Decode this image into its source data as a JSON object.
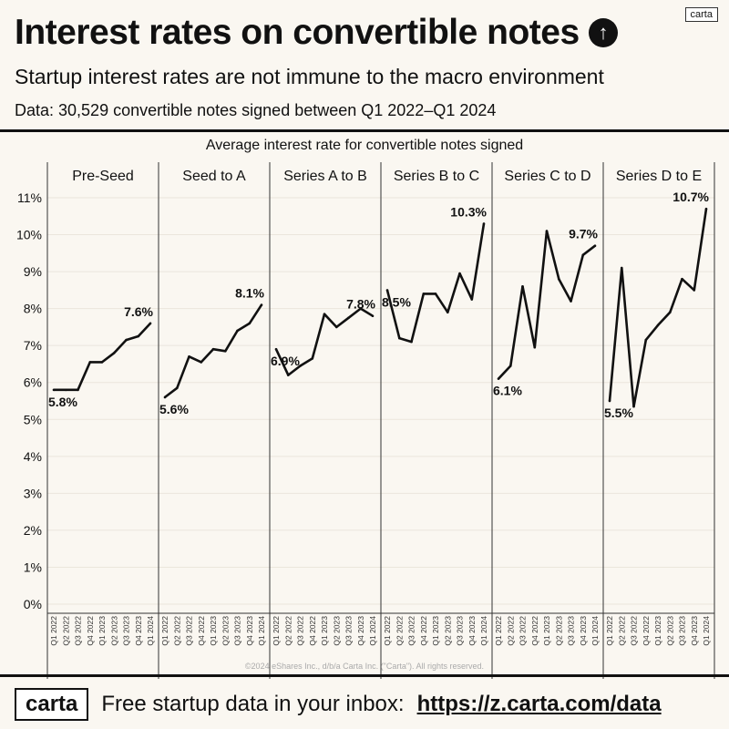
{
  "header": {
    "title": "Interest rates on convertible notes",
    "title_icon": "arrow-up-circle-icon",
    "subtitle": "Startup interest rates are not immune to the macro environment",
    "data_note": "Data: 30,529 convertible notes signed between Q1 2022–Q1 2024",
    "logo_small": "carta"
  },
  "chart_data": {
    "type": "line",
    "title": "Average interest rate for convertible notes signed",
    "x": [
      "Q1 2022",
      "Q2 2022",
      "Q3 2022",
      "Q4 2022",
      "Q1 2023",
      "Q2 2023",
      "Q3 2023",
      "Q4 2023",
      "Q1 2024"
    ],
    "yticks": [
      "0%",
      "1%",
      "2%",
      "3%",
      "4%",
      "5%",
      "6%",
      "7%",
      "8%",
      "9%",
      "10%",
      "11%"
    ],
    "ylim": [
      0,
      11
    ],
    "grid": true,
    "line_color": "#111111",
    "panels": [
      {
        "name": "Pre-Seed",
        "values": [
          5.8,
          5.8,
          5.8,
          6.55,
          6.55,
          6.8,
          7.15,
          7.25,
          7.6
        ],
        "start_label": "5.8%",
        "end_label": "7.6%"
      },
      {
        "name": "Seed to A",
        "values": [
          5.6,
          5.85,
          6.7,
          6.55,
          6.9,
          6.85,
          7.4,
          7.6,
          8.1
        ],
        "start_label": "5.6%",
        "end_label": "8.1%"
      },
      {
        "name": "Series A to B",
        "values": [
          6.9,
          6.2,
          6.45,
          6.65,
          7.85,
          7.5,
          7.75,
          8.0,
          7.8
        ],
        "start_label": "6.9%",
        "end_label": "7.8%"
      },
      {
        "name": "Series B to C",
        "values": [
          8.5,
          7.2,
          7.1,
          8.4,
          8.4,
          7.9,
          8.95,
          8.25,
          10.3
        ],
        "start_label": "8.5%",
        "end_label": "10.3%"
      },
      {
        "name": "Series C to D",
        "values": [
          6.1,
          6.45,
          8.6,
          6.95,
          10.1,
          8.8,
          8.2,
          9.45,
          9.7
        ],
        "start_label": "6.1%",
        "end_label": "9.7%"
      },
      {
        "name": "Series D to E",
        "values": [
          5.5,
          9.1,
          5.35,
          7.15,
          7.55,
          7.9,
          8.8,
          8.5,
          10.7
        ],
        "start_label": "5.5%",
        "end_label": "10.7%"
      }
    ]
  },
  "copyright": "©2024 eShares Inc., d/b/a Carta Inc. (\"Carta\"). All rights reserved.",
  "footer": {
    "logo": "carta",
    "text": "Free startup data in your inbox:",
    "link": "https://z.carta.com/data"
  }
}
